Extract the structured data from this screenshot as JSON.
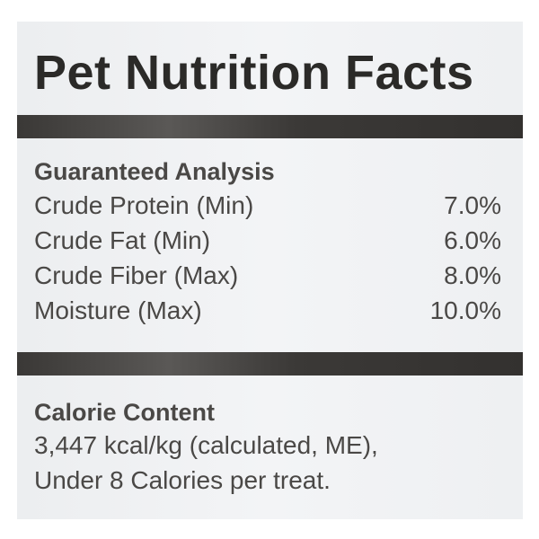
{
  "title": "Pet Nutrition Facts",
  "guaranteed_analysis": {
    "heading": "Guaranteed Analysis",
    "rows": [
      {
        "label": "Crude Protein (Min)",
        "value": "7.0%"
      },
      {
        "label": "Crude Fat (Min)",
        "value": "6.0%"
      },
      {
        "label": "Crude Fiber (Max)",
        "value": "8.0%"
      },
      {
        "label": "Moisture (Max)",
        "value": "10.0%"
      }
    ]
  },
  "calorie_content": {
    "heading": "Calorie Content",
    "lines": [
      "3,447 kcal/kg (calculated, ME),",
      "Under 8 Calories per treat."
    ]
  }
}
